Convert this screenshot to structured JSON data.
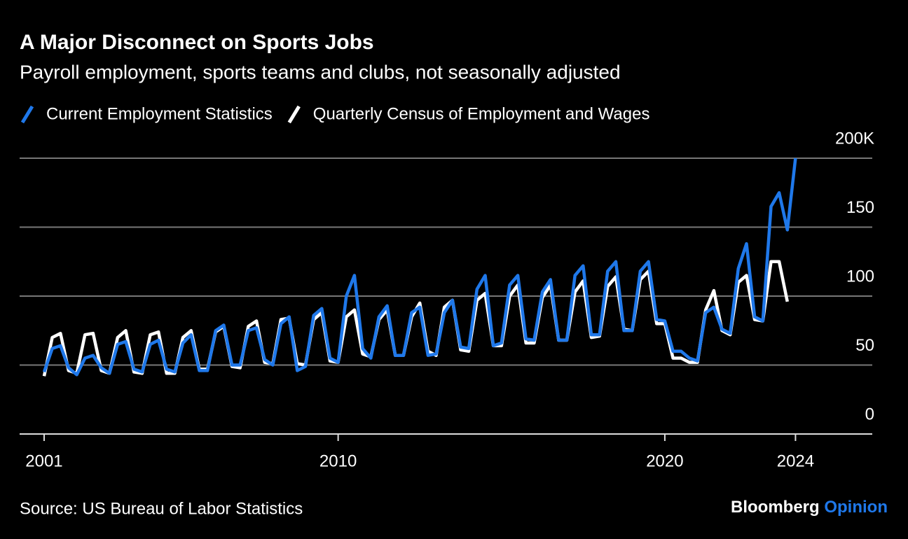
{
  "chart_data": {
    "type": "line",
    "title": "A Major Disconnect on Sports Jobs",
    "subtitle": "Payroll employment, sports teams and clubs, not seasonally adjusted",
    "source": "Source: US Bureau of Labor Statistics",
    "branding": [
      "Bloomberg",
      "Opinion"
    ],
    "x": [
      2001,
      2001.25,
      2001.5,
      2001.75,
      2002,
      2002.25,
      2002.5,
      2002.75,
      2003,
      2003.25,
      2003.5,
      2003.75,
      2004,
      2004.25,
      2004.5,
      2004.75,
      2005,
      2005.25,
      2005.5,
      2005.75,
      2006,
      2006.25,
      2006.5,
      2006.75,
      2007,
      2007.25,
      2007.5,
      2007.75,
      2008,
      2008.25,
      2008.5,
      2008.75,
      2009,
      2009.25,
      2009.5,
      2009.75,
      2010,
      2010.25,
      2010.5,
      2010.75,
      2011,
      2011.25,
      2011.5,
      2011.75,
      2012,
      2012.25,
      2012.5,
      2012.75,
      2013,
      2013.25,
      2013.5,
      2013.75,
      2014,
      2014.25,
      2014.5,
      2014.75,
      2015,
      2015.25,
      2015.5,
      2015.75,
      2016,
      2016.25,
      2016.5,
      2016.75,
      2017,
      2017.25,
      2017.5,
      2017.75,
      2018,
      2018.25,
      2018.5,
      2018.75,
      2019,
      2019.25,
      2019.5,
      2019.75,
      2020,
      2020.25,
      2020.5,
      2020.75,
      2021,
      2021.25,
      2021.5,
      2021.75,
      2022,
      2022.25,
      2022.5,
      2022.75,
      2023,
      2023.25,
      2023.5,
      2023.75,
      2024
    ],
    "series": [
      {
        "name": "Current Employment Statistics",
        "color": "#1f78ea",
        "values": [
          45,
          62,
          64,
          48,
          43,
          55,
          57,
          48,
          44,
          65,
          67,
          47,
          45,
          65,
          68,
          47,
          45,
          66,
          72,
          46,
          46,
          75,
          79,
          50,
          50,
          75,
          77,
          54,
          50,
          80,
          85,
          46,
          49,
          86,
          91,
          55,
          52,
          100,
          115,
          62,
          55,
          85,
          93,
          57,
          57,
          88,
          92,
          57,
          58,
          88,
          97,
          63,
          62,
          105,
          115,
          64,
          66,
          108,
          115,
          69,
          68,
          103,
          112,
          68,
          68,
          115,
          122,
          72,
          72,
          118,
          125,
          75,
          75,
          118,
          125,
          83,
          82,
          60,
          60,
          55,
          53,
          88,
          92,
          76,
          73,
          120,
          138,
          85,
          82,
          165,
          175,
          148,
          200
        ]
      },
      {
        "name": "Quarterly Census of Employment and Wages",
        "color": "#ffffff",
        "values": [
          42,
          70,
          73,
          46,
          44,
          72,
          73,
          46,
          44,
          70,
          75,
          45,
          44,
          72,
          74,
          44,
          44,
          70,
          75,
          47,
          47,
          74,
          78,
          49,
          48,
          78,
          82,
          52,
          51,
          83,
          84,
          51,
          50,
          83,
          88,
          53,
          52,
          85,
          90,
          58,
          56,
          83,
          90,
          57,
          57,
          85,
          95,
          60,
          57,
          92,
          97,
          61,
          60,
          97,
          102,
          64,
          64,
          100,
          108,
          66,
          66,
          99,
          108,
          68,
          68,
          103,
          111,
          70,
          71,
          107,
          114,
          76,
          75,
          112,
          118,
          80,
          80,
          55,
          55,
          52,
          52,
          90,
          104,
          75,
          72,
          110,
          115,
          83,
          82,
          125,
          125,
          96,
          null
        ]
      }
    ],
    "xlim": [
      2000.25,
      2026.35
    ],
    "xticks": [
      2001,
      2010,
      2020,
      2024
    ],
    "ylim": [
      0,
      200
    ],
    "yticks": [
      0,
      50,
      100,
      150,
      {
        "value": 200,
        "label": "200K"
      }
    ],
    "grid": true
  }
}
